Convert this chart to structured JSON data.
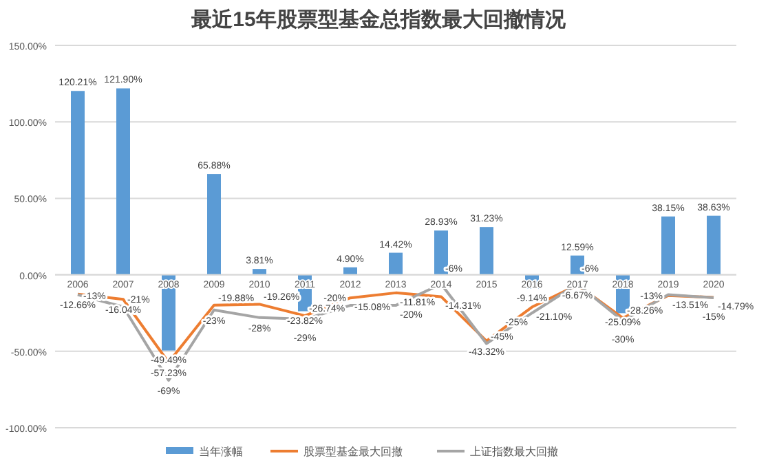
{
  "chart_data": {
    "type": "bar",
    "title": "最近15年股票型基金总指数最大回撤情况",
    "categories": [
      "2006",
      "2007",
      "2008",
      "2009",
      "2010",
      "2011",
      "2012",
      "2013",
      "2014",
      "2015",
      "2016",
      "2017",
      "2018",
      "2019",
      "2020"
    ],
    "series": [
      {
        "name": "当年涨幅",
        "color": "#5b9bd5",
        "values": [
          120.21,
          121.9,
          -49.49,
          65.88,
          3.81,
          -23.82,
          4.9,
          14.42,
          28.93,
          31.23,
          -9.14,
          12.59,
          -25.09,
          38.15,
          38.63
        ],
        "value_labels": [
          "120.21%",
          "121.90%",
          "-49.49%",
          "65.88%",
          "3.81%",
          "-23.82%",
          "4.90%",
          "14.42%",
          "28.93%",
          "31.23%",
          "-9.14%",
          "12.59%",
          "-25.09%",
          "38.15%",
          "38.63%"
        ]
      },
      {
        "name": "股票型基金最大回撤",
        "type": "line",
        "color": "#ed7d31",
        "values": [
          -12.66,
          -16.04,
          -57.23,
          -19.88,
          -19.26,
          -26.74,
          -15.08,
          -11.81,
          -14.31,
          -43.32,
          -21.1,
          -6.67,
          -28.26,
          -13.51,
          -14.79
        ],
        "value_labels": [
          "-12.66%",
          "-16.04%",
          "-57.23%",
          "-19.88%",
          "-19.26%",
          "-26.74%",
          "-15.08%",
          "-11.81%",
          "-14.31%",
          "-43.32%",
          "-21.10%",
          "-6.67%",
          "-28.26%",
          "-13.51%",
          "-14.79%"
        ]
      },
      {
        "name": "上证指数最大回撤",
        "type": "line",
        "color": "#a5a5a5",
        "values": [
          -13,
          -21,
          -69,
          -23,
          -28,
          -29,
          -20,
          -20,
          -6,
          -45,
          -25,
          -6,
          -30,
          -13,
          -15
        ],
        "value_labels": [
          "-13%",
          "-21%",
          "-69%",
          "-23%",
          "-28%",
          "-29%",
          "-20%",
          "-20%",
          "-6%",
          "-45%",
          "-25%",
          "-6%",
          "-30%",
          "-13%",
          "-15%"
        ]
      }
    ],
    "ylim": [
      -100,
      150
    ],
    "yticks": [
      {
        "value": -100,
        "label": "-100.00%"
      },
      {
        "value": -50,
        "label": "-50.00%"
      },
      {
        "value": 0,
        "label": "0.00%"
      },
      {
        "value": 50,
        "label": "50.00%"
      },
      {
        "value": 100,
        "label": "100.00%"
      },
      {
        "value": 150,
        "label": "150.00%"
      }
    ],
    "grid": "y",
    "legend": "bottom",
    "marker": "none"
  }
}
